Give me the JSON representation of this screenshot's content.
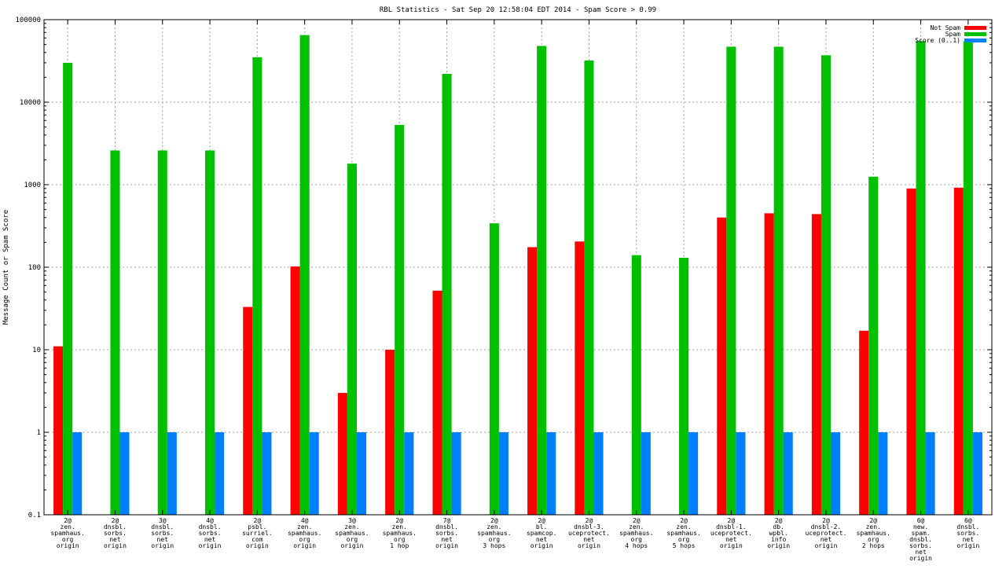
{
  "chart_data": {
    "type": "bar",
    "title": "RBL Statistics - Sat Sep 20 12:58:04 EDT 2014 - Spam Score > 0.99",
    "xlabel": "",
    "ylabel": "Message Count or Spam Score",
    "y_scale": "log",
    "ylim": [
      0.1,
      100000
    ],
    "y_ticks": [
      {
        "value": 0.1,
        "label": "0.1"
      },
      {
        "value": 1,
        "label": "1"
      },
      {
        "value": 10,
        "label": "10"
      },
      {
        "value": 100,
        "label": "100"
      },
      {
        "value": 1000,
        "label": "1000"
      },
      {
        "value": 10000,
        "label": "10000"
      },
      {
        "value": 100000,
        "label": "100000"
      }
    ],
    "grid": true,
    "legend_position": "top-right",
    "categories": [
      [
        "2@",
        "zen.",
        "spamhaus.",
        "org",
        "origin"
      ],
      [
        "2@",
        "dnsbl.",
        "sorbs.",
        "net",
        "origin"
      ],
      [
        "3@",
        "dnsbl.",
        "sorbs.",
        "net",
        "origin"
      ],
      [
        "4@",
        "dnsbl.",
        "sorbs.",
        "net",
        "origin"
      ],
      [
        "2@",
        "psbl.",
        "surriel.",
        "com",
        "origin"
      ],
      [
        "4@",
        "zen.",
        "spamhaus.",
        "org",
        "origin"
      ],
      [
        "3@",
        "zen.",
        "spamhaus.",
        "org",
        "origin"
      ],
      [
        "2@",
        "zen.",
        "spamhaus.",
        "org",
        "1 hop"
      ],
      [
        "7@",
        "dnsbl.",
        "sorbs.",
        "net",
        "origin"
      ],
      [
        "2@",
        "zen.",
        "spamhaus.",
        "org",
        "3 hops"
      ],
      [
        "2@",
        "bl.",
        "spamcop.",
        "net",
        "origin"
      ],
      [
        "2@",
        "dnsbl-3.",
        "uceprotect.",
        "net",
        "origin"
      ],
      [
        "2@",
        "zen.",
        "spamhaus.",
        "org",
        "4 hops"
      ],
      [
        "2@",
        "zen.",
        "spamhaus.",
        "org",
        "5 hops"
      ],
      [
        "2@",
        "dnsbl-1.",
        "uceprotect.",
        "net",
        "origin"
      ],
      [
        "2@",
        "db.",
        "wpbl.",
        "info",
        "origin"
      ],
      [
        "2@",
        "dnsbl-2.",
        "uceprotect.",
        "net",
        "origin"
      ],
      [
        "2@",
        "zen.",
        "spamhaus.",
        "org",
        "2 hops"
      ],
      [
        "6@",
        "new.",
        "spam.",
        "dnsbl.",
        "sorbs.",
        "net",
        "origin"
      ],
      [
        "6@",
        "dnsbl.",
        "sorbs.",
        "net",
        "origin"
      ]
    ],
    "series": [
      {
        "name": "Not Spam",
        "color": "#ff0000",
        "values": [
          11,
          null,
          null,
          null,
          33,
          102,
          3,
          10,
          52,
          null,
          175,
          205,
          null,
          null,
          400,
          450,
          440,
          17,
          900,
          920
        ]
      },
      {
        "name": "Spam",
        "color": "#00c000",
        "values": [
          30000,
          2600,
          2600,
          2600,
          35000,
          65000,
          1800,
          5300,
          22000,
          340,
          48000,
          32000,
          140,
          130,
          47000,
          47000,
          37000,
          1250,
          55000,
          55000
        ]
      },
      {
        "name": "Score (0..1)",
        "color": "#0080ff",
        "values": [
          1,
          1,
          1,
          1,
          1,
          1,
          1,
          1,
          1,
          1,
          1,
          1,
          1,
          1,
          1,
          1,
          1,
          1,
          1,
          1
        ]
      }
    ]
  }
}
